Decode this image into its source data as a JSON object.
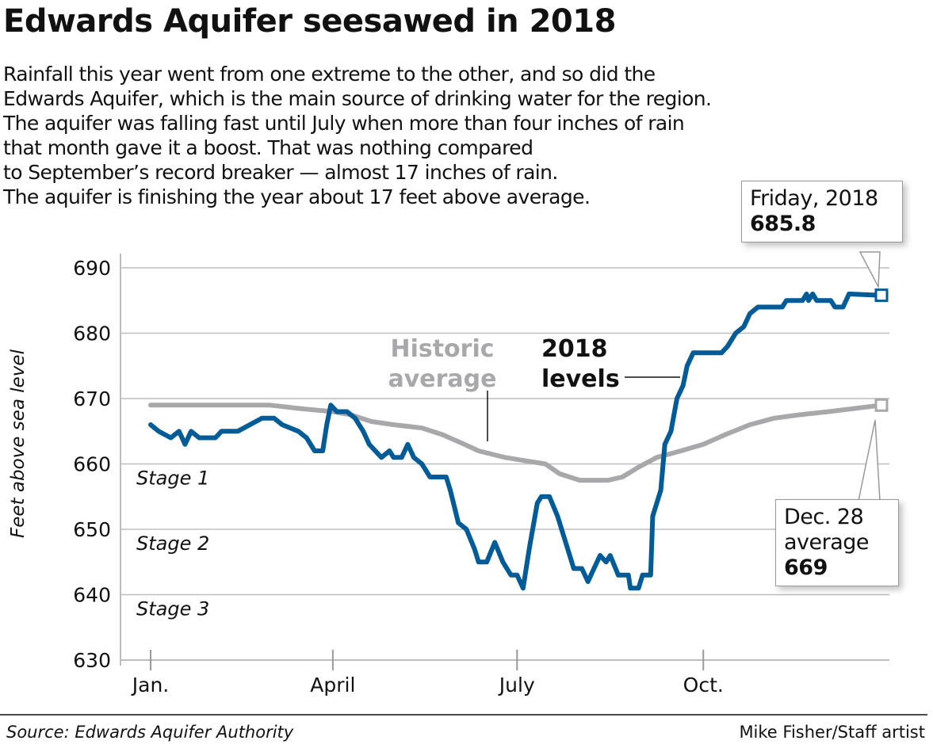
{
  "title": "Edwards Aquifer seesawed in 2018",
  "subtitle": [
    "Rainfall this year went from one extreme to the other, and so did the",
    "Edwards Aquifer, which is the main source of drinking water for the region.",
    "The aquifer was falling fast until July when more than four inches of rain",
    "that month gave it a boost. That was nothing compared",
    "to September’s record breaker — almost 17 inches of rain.",
    "The aquifer is finishing the year about 17 feet above average."
  ],
  "callouts": {
    "latest": {
      "line1": "Friday, 2018",
      "value": "685.8"
    },
    "average": {
      "line1": "Dec. 28",
      "line2": "average",
      "value": "669"
    }
  },
  "footer": {
    "source": "Source: Edwards Aquifer Authority",
    "credit": "Mike Fisher/Staff artist"
  },
  "colors": {
    "levels_2018": "#005b96",
    "historic": "#a8a8aa",
    "grid": "#bdbdbd"
  },
  "chart_data": {
    "type": "line",
    "title": "Edwards Aquifer seesawed in 2018",
    "xlabel": "",
    "ylabel": "Feet above sea level",
    "ylim": [
      630,
      690
    ],
    "yticks": [
      630,
      640,
      650,
      660,
      670,
      680,
      690
    ],
    "xticks": [
      {
        "date": "2018-01-01",
        "label": "Jan."
      },
      {
        "date": "2018-04-01",
        "label": "April"
      },
      {
        "date": "2018-07-01",
        "label": "July"
      },
      {
        "date": "2018-10-01",
        "label": "Oct."
      }
    ],
    "grid": true,
    "stage_labels": [
      {
        "label": "Stage 1",
        "y": 660
      },
      {
        "label": "Stage 2",
        "y": 650
      },
      {
        "label": "Stage 3",
        "y": 640
      }
    ],
    "series": [
      {
        "name": "Historic average",
        "color": "#a8a8aa",
        "points": [
          [
            "2018-01-01",
            669
          ],
          [
            "2018-02-01",
            669
          ],
          [
            "2018-03-01",
            669
          ],
          [
            "2018-03-15",
            668.5
          ],
          [
            "2018-04-01",
            668
          ],
          [
            "2018-04-10",
            667.5
          ],
          [
            "2018-04-20",
            666.5
          ],
          [
            "2018-05-01",
            666
          ],
          [
            "2018-05-15",
            665.5
          ],
          [
            "2018-05-25",
            664.5
          ],
          [
            "2018-06-05",
            663
          ],
          [
            "2018-06-12",
            662
          ],
          [
            "2018-06-25",
            661
          ],
          [
            "2018-07-05",
            660.5
          ],
          [
            "2018-07-15",
            660
          ],
          [
            "2018-07-22",
            658.5
          ],
          [
            "2018-08-01",
            657.5
          ],
          [
            "2018-08-15",
            657.5
          ],
          [
            "2018-08-22",
            658
          ],
          [
            "2018-08-30",
            659.5
          ],
          [
            "2018-09-08",
            661
          ],
          [
            "2018-09-20",
            662
          ],
          [
            "2018-10-01",
            663
          ],
          [
            "2018-10-12",
            664.5
          ],
          [
            "2018-10-24",
            666
          ],
          [
            "2018-11-05",
            667
          ],
          [
            "2018-11-17",
            667.5
          ],
          [
            "2018-12-02",
            668
          ],
          [
            "2018-12-28",
            669
          ]
        ]
      },
      {
        "name": "2018 levels",
        "color": "#005b96",
        "points": [
          [
            "2018-01-01",
            666
          ],
          [
            "2018-01-05",
            665
          ],
          [
            "2018-01-11",
            664
          ],
          [
            "2018-01-15",
            665
          ],
          [
            "2018-01-18",
            663
          ],
          [
            "2018-01-21",
            665
          ],
          [
            "2018-01-25",
            664
          ],
          [
            "2018-02-02",
            664
          ],
          [
            "2018-02-05",
            665
          ],
          [
            "2018-02-13",
            665
          ],
          [
            "2018-02-25",
            667
          ],
          [
            "2018-03-03",
            667
          ],
          [
            "2018-03-07",
            666
          ],
          [
            "2018-03-15",
            665
          ],
          [
            "2018-03-19",
            664
          ],
          [
            "2018-03-23",
            662
          ],
          [
            "2018-03-27",
            662
          ],
          [
            "2018-03-29",
            666
          ],
          [
            "2018-03-31",
            669
          ],
          [
            "2018-04-03",
            668
          ],
          [
            "2018-04-08",
            668
          ],
          [
            "2018-04-12",
            667
          ],
          [
            "2018-04-16",
            665
          ],
          [
            "2018-04-19",
            663
          ],
          [
            "2018-04-25",
            661
          ],
          [
            "2018-04-29",
            662
          ],
          [
            "2018-05-01",
            661
          ],
          [
            "2018-05-05",
            661
          ],
          [
            "2018-05-08",
            663
          ],
          [
            "2018-05-11",
            661
          ],
          [
            "2018-05-15",
            660
          ],
          [
            "2018-05-19",
            658
          ],
          [
            "2018-05-27",
            658
          ],
          [
            "2018-05-29",
            656
          ],
          [
            "2018-06-02",
            651
          ],
          [
            "2018-06-06",
            650
          ],
          [
            "2018-06-10",
            647
          ],
          [
            "2018-06-12",
            645
          ],
          [
            "2018-06-16",
            645
          ],
          [
            "2018-06-20",
            648
          ],
          [
            "2018-06-24",
            645
          ],
          [
            "2018-06-28",
            643
          ],
          [
            "2018-07-01",
            643
          ],
          [
            "2018-07-04",
            641
          ],
          [
            "2018-07-07",
            647
          ],
          [
            "2018-07-11",
            654
          ],
          [
            "2018-07-13",
            655
          ],
          [
            "2018-07-17",
            655
          ],
          [
            "2018-07-21",
            652
          ],
          [
            "2018-07-25",
            648
          ],
          [
            "2018-07-29",
            644
          ],
          [
            "2018-08-02",
            644
          ],
          [
            "2018-08-05",
            642
          ],
          [
            "2018-08-08",
            644
          ],
          [
            "2018-08-11",
            646
          ],
          [
            "2018-08-14",
            645
          ],
          [
            "2018-08-16",
            646
          ],
          [
            "2018-08-20",
            643
          ],
          [
            "2018-08-25",
            643
          ],
          [
            "2018-08-26",
            641
          ],
          [
            "2018-08-30",
            641
          ],
          [
            "2018-09-01",
            643
          ],
          [
            "2018-09-05",
            643
          ],
          [
            "2018-09-06",
            652
          ],
          [
            "2018-09-10",
            656
          ],
          [
            "2018-09-12",
            663
          ],
          [
            "2018-09-15",
            665
          ],
          [
            "2018-09-18",
            670
          ],
          [
            "2018-09-21",
            672
          ],
          [
            "2018-09-23",
            675
          ],
          [
            "2018-09-26",
            677
          ],
          [
            "2018-10-10",
            677
          ],
          [
            "2018-10-13",
            678
          ],
          [
            "2018-10-17",
            680
          ],
          [
            "2018-10-21",
            681
          ],
          [
            "2018-10-24",
            683
          ],
          [
            "2018-10-28",
            684
          ],
          [
            "2018-11-09",
            684
          ],
          [
            "2018-11-11",
            685
          ],
          [
            "2018-11-19",
            685
          ],
          [
            "2018-11-21",
            686
          ],
          [
            "2018-11-22",
            685
          ],
          [
            "2018-11-24",
            686
          ],
          [
            "2018-11-26",
            685
          ],
          [
            "2018-12-03",
            685
          ],
          [
            "2018-12-05",
            684
          ],
          [
            "2018-12-09",
            684
          ],
          [
            "2018-12-12",
            686
          ],
          [
            "2018-12-28",
            685.8
          ]
        ]
      }
    ],
    "annotations": [
      {
        "text": [
          "Historic",
          "average"
        ],
        "series": "Historic average"
      },
      {
        "text": [
          "2018",
          "levels"
        ],
        "series": "2018 levels"
      }
    ]
  }
}
